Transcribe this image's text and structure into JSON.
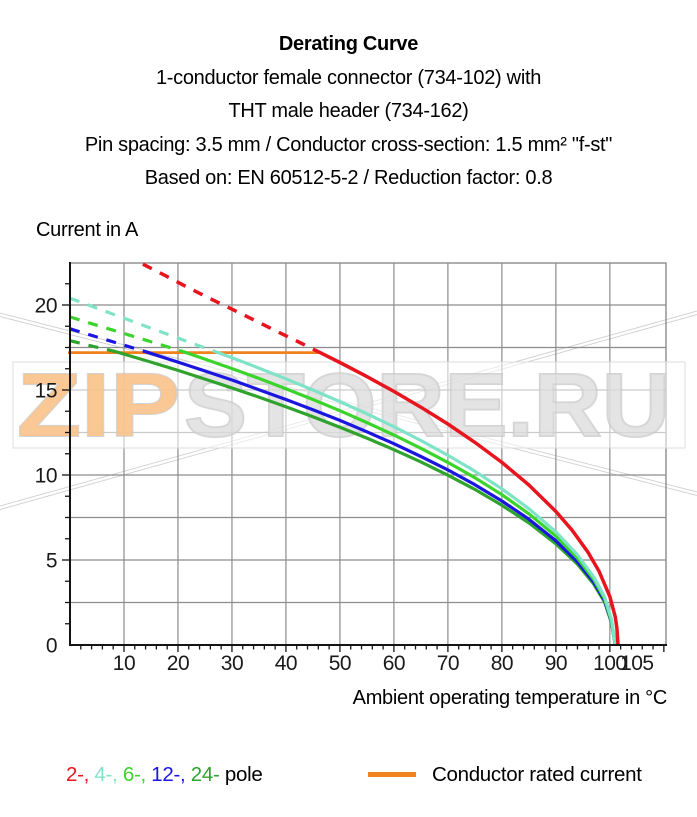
{
  "title": {
    "lines": [
      "Derating Curve",
      "1-conductor female connector (734-102) with",
      "THT male header (734-162)",
      "Pin spacing: 3.5 mm / Conductor cross-section: 1.5 mm² \"f-st\"",
      "Based on: EN 60512-5-2 / Reduction factor: 0.8"
    ]
  },
  "watermark": {
    "part1": "ZIP",
    "part2": "STORE.RU",
    "part1_fill": "#f9c38c",
    "part2_fill": "#d9d9d9",
    "outline_color": "#c3c3c3"
  },
  "legend": {
    "poles": [
      {
        "label": "2-",
        "color": "#e8141e"
      },
      {
        "label": "4-",
        "color": "#7fe3c8"
      },
      {
        "label": "6-",
        "color": "#3bd42c"
      },
      {
        "label": "12-",
        "color": "#1b15e0"
      },
      {
        "label": "24-",
        "color": "#2fa32e"
      }
    ],
    "separator": ", ",
    "suffix": "pole",
    "rated": {
      "label": "Conductor rated current",
      "color": "#f0821e"
    }
  },
  "chart_data": {
    "type": "line",
    "title": "Derating Curve",
    "ylabel": "Current in A",
    "xlabel": "Ambient operating temperature in °C",
    "xlim": [
      0,
      110.4
    ],
    "ylim": [
      0,
      22.47
    ],
    "grid": true,
    "x_grid_step": 10,
    "y_grid_step": 2.5,
    "x_minor_tick_step": 2,
    "y_minor_tick_step": 1.25,
    "x_tick_labels": [
      10,
      20,
      30,
      40,
      50,
      60,
      70,
      80,
      90,
      100,
      105
    ],
    "y_tick_labels": [
      0,
      5,
      10,
      15,
      20
    ],
    "grid_color": "#8c8c8c",
    "axis_color": "#141414",
    "rated_current_line": {
      "y": 17.2,
      "x_start": 0,
      "x_end": 46,
      "color": "#f0821e",
      "label": "Conductor rated current"
    },
    "series": [
      {
        "name": "24-pole",
        "color": "#2fa32e",
        "width": 3.2,
        "points_dashed": [
          [
            0,
            17.9
          ],
          [
            4,
            17.59
          ],
          [
            8.5,
            17.25
          ]
        ],
        "points_solid": [
          [
            8.5,
            17.25
          ],
          [
            15,
            16.64
          ],
          [
            20,
            16.15
          ],
          [
            25,
            15.64
          ],
          [
            30,
            15.12
          ],
          [
            35,
            14.58
          ],
          [
            40,
            14.01
          ],
          [
            45,
            13.43
          ],
          [
            50,
            12.81
          ],
          [
            55,
            12.17
          ],
          [
            60,
            11.49
          ],
          [
            65,
            10.77
          ],
          [
            70,
            9.99
          ],
          [
            75,
            9.15
          ],
          [
            80,
            8.22
          ],
          [
            85,
            7.18
          ],
          [
            90,
            5.95
          ],
          [
            94,
            4.75
          ],
          [
            97,
            3.59
          ],
          [
            99,
            2.54
          ],
          [
            100.3,
            1.3
          ],
          [
            101,
            0
          ]
        ]
      },
      {
        "name": "12-pole",
        "color": "#1b15e0",
        "width": 3.2,
        "points_dashed": [
          [
            0,
            18.6
          ],
          [
            4,
            18.21
          ],
          [
            8,
            17.83
          ],
          [
            11,
            17.54
          ],
          [
            14,
            17.25
          ]
        ],
        "points_solid": [
          [
            14,
            17.25
          ],
          [
            20,
            16.64
          ],
          [
            25,
            16.12
          ],
          [
            30,
            15.59
          ],
          [
            35,
            15.02
          ],
          [
            40,
            14.44
          ],
          [
            45,
            13.84
          ],
          [
            50,
            13.21
          ],
          [
            55,
            12.54
          ],
          [
            60,
            11.84
          ],
          [
            65,
            11.09
          ],
          [
            70,
            10.3
          ],
          [
            75,
            9.43
          ],
          [
            80,
            8.47
          ],
          [
            85,
            7.4
          ],
          [
            90,
            6.13
          ],
          [
            94,
            4.89
          ],
          [
            97,
            3.7
          ],
          [
            99,
            2.61
          ],
          [
            100.3,
            1.35
          ],
          [
            101,
            0
          ]
        ]
      },
      {
        "name": "6-pole",
        "color": "#3bd42c",
        "width": 3.2,
        "points_dashed": [
          [
            0,
            19.3
          ],
          [
            4,
            18.9
          ],
          [
            8,
            18.52
          ],
          [
            12,
            18.13
          ],
          [
            16,
            17.74
          ],
          [
            21,
            17.25
          ]
        ],
        "points_solid": [
          [
            21,
            17.25
          ],
          [
            25,
            16.82
          ],
          [
            30,
            16.26
          ],
          [
            35,
            15.68
          ],
          [
            40,
            15.07
          ],
          [
            45,
            14.44
          ],
          [
            50,
            13.78
          ],
          [
            55,
            13.08
          ],
          [
            60,
            12.35
          ],
          [
            65,
            11.57
          ],
          [
            70,
            10.74
          ],
          [
            75,
            9.84
          ],
          [
            80,
            8.84
          ],
          [
            85,
            7.72
          ],
          [
            90,
            6.4
          ],
          [
            94,
            5.11
          ],
          [
            97,
            3.86
          ],
          [
            99,
            2.73
          ],
          [
            100.3,
            1.4
          ],
          [
            101,
            0
          ]
        ]
      },
      {
        "name": "4-pole",
        "color": "#7fe3c8",
        "width": 3.2,
        "points_dashed": [
          [
            0,
            20.4
          ],
          [
            4,
            19.93
          ],
          [
            8,
            19.46
          ],
          [
            12,
            18.99
          ],
          [
            16,
            18.52
          ],
          [
            20,
            18.05
          ],
          [
            23,
            17.7
          ],
          [
            27,
            17.25
          ]
        ],
        "points_solid": [
          [
            27,
            17.25
          ],
          [
            30,
            16.9
          ],
          [
            35,
            16.29
          ],
          [
            40,
            15.66
          ],
          [
            45,
            15.0
          ],
          [
            50,
            14.32
          ],
          [
            55,
            13.6
          ],
          [
            60,
            12.84
          ],
          [
            65,
            12.03
          ],
          [
            70,
            11.16
          ],
          [
            75,
            10.22
          ],
          [
            80,
            9.19
          ],
          [
            85,
            8.02
          ],
          [
            90,
            6.65
          ],
          [
            94,
            5.3
          ],
          [
            97,
            4.01
          ],
          [
            99,
            2.84
          ],
          [
            100.3,
            1.5
          ],
          [
            101,
            0
          ]
        ]
      },
      {
        "name": "2-pole",
        "color": "#e8141e",
        "width": 3.5,
        "points_dashed": [
          [
            13.5,
            22.4
          ],
          [
            18,
            21.67
          ],
          [
            22,
            21.0
          ],
          [
            26,
            20.37
          ],
          [
            30,
            19.75
          ],
          [
            34,
            19.13
          ],
          [
            38,
            18.5
          ],
          [
            42,
            17.88
          ],
          [
            46,
            17.25
          ]
        ],
        "points_solid": [
          [
            46,
            17.25
          ],
          [
            50,
            16.62
          ],
          [
            55,
            15.79
          ],
          [
            60,
            14.92
          ],
          [
            65,
            13.99
          ],
          [
            70,
            13.0
          ],
          [
            75,
            11.92
          ],
          [
            80,
            10.74
          ],
          [
            85,
            9.41
          ],
          [
            90,
            7.85
          ],
          [
            93,
            6.75
          ],
          [
            96,
            5.43
          ],
          [
            98,
            4.33
          ],
          [
            100,
            2.84
          ],
          [
            101,
            1.64
          ],
          [
            101.3,
            1.0
          ],
          [
            101.5,
            0
          ]
        ]
      }
    ]
  }
}
